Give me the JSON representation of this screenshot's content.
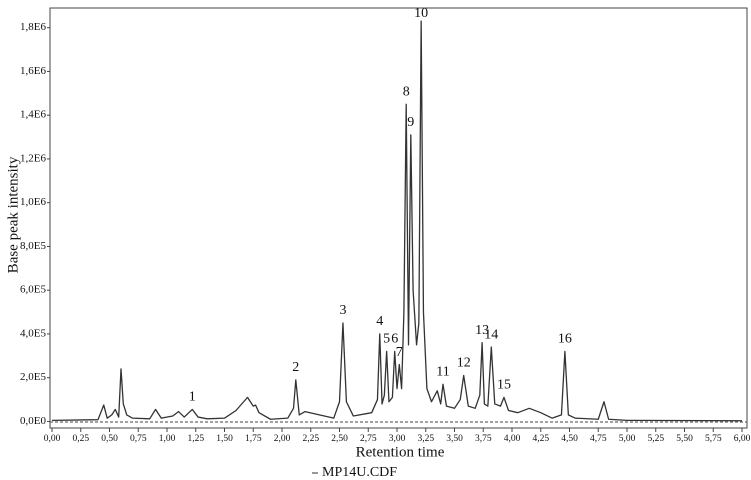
{
  "chart_data": {
    "type": "line",
    "x_label": "Retention time",
    "y_label": "Base peak intensity",
    "xlim": [
      0,
      6
    ],
    "ylim": [
      -30000,
      1890000
    ],
    "xticks": [
      {
        "value": 0,
        "label": "0,00"
      },
      {
        "value": 0.25,
        "label": "0,25"
      },
      {
        "value": 0.5,
        "label": "0,50"
      },
      {
        "value": 0.75,
        "label": "0,75"
      },
      {
        "value": 1,
        "label": "1,00"
      },
      {
        "value": 1.25,
        "label": "1,25"
      },
      {
        "value": 1.5,
        "label": "1,50"
      },
      {
        "value": 1.75,
        "label": "1,75"
      },
      {
        "value": 2,
        "label": "2,00"
      },
      {
        "value": 2.25,
        "label": "2,25"
      },
      {
        "value": 2.5,
        "label": "2,50"
      },
      {
        "value": 2.75,
        "label": "2,75"
      },
      {
        "value": 3,
        "label": "3,00"
      },
      {
        "value": 3.25,
        "label": "3,25"
      },
      {
        "value": 3.5,
        "label": "3,50"
      },
      {
        "value": 3.75,
        "label": "3,75"
      },
      {
        "value": 4,
        "label": "4,00"
      },
      {
        "value": 4.25,
        "label": "4,25"
      },
      {
        "value": 4.5,
        "label": "4,50"
      },
      {
        "value": 4.75,
        "label": "4,75"
      },
      {
        "value": 5,
        "label": "5,00"
      },
      {
        "value": 5.25,
        "label": "5,25"
      },
      {
        "value": 5.5,
        "label": "5,50"
      },
      {
        "value": 5.75,
        "label": "5,75"
      },
      {
        "value": 6,
        "label": "6,00"
      }
    ],
    "yticks": [
      {
        "value": 0,
        "label": "0,0E0"
      },
      {
        "value": 200000,
        "label": "2,0E5"
      },
      {
        "value": 400000,
        "label": "4,0E5"
      },
      {
        "value": 600000,
        "label": "6,0E5"
      },
      {
        "value": 800000,
        "label": "8,0E5"
      },
      {
        "value": 1000000,
        "label": "1,0E6"
      },
      {
        "value": 1200000,
        "label": "1,2E6"
      },
      {
        "value": 1400000,
        "label": "1,4E6"
      },
      {
        "value": 1600000,
        "label": "1,6E6"
      },
      {
        "value": 1800000,
        "label": "1,8E6"
      }
    ],
    "x": [
      0,
      0.4,
      0.45,
      0.48,
      0.52,
      0.55,
      0.58,
      0.6,
      0.62,
      0.65,
      0.7,
      0.85,
      0.9,
      0.95,
      1.05,
      1.1,
      1.15,
      1.22,
      1.27,
      1.35,
      1.5,
      1.6,
      1.7,
      1.75,
      1.77,
      1.8,
      1.9,
      2.05,
      2.1,
      2.12,
      2.15,
      2.2,
      2.45,
      2.5,
      2.53,
      2.56,
      2.62,
      2.78,
      2.83,
      2.85,
      2.87,
      2.89,
      2.91,
      2.93,
      2.96,
      2.98,
      3.0,
      3.02,
      3.04,
      3.06,
      3.08,
      3.1,
      3.12,
      3.14,
      3.17,
      3.19,
      3.21,
      3.23,
      3.26,
      3.3,
      3.35,
      3.38,
      3.4,
      3.43,
      3.5,
      3.55,
      3.58,
      3.62,
      3.68,
      3.72,
      3.74,
      3.76,
      3.79,
      3.82,
      3.85,
      3.9,
      3.93,
      3.97,
      4.05,
      4.15,
      4.25,
      4.35,
      4.43,
      4.46,
      4.49,
      4.55,
      4.75,
      4.8,
      4.84,
      5.0,
      6.0
    ],
    "series": [
      {
        "name": "MP14U.CDF",
        "color": "#333333",
        "values": [
          5000,
          8000,
          75000,
          15000,
          30000,
          55000,
          20000,
          240000,
          80000,
          30000,
          15000,
          12000,
          55000,
          15000,
          25000,
          45000,
          20000,
          55000,
          20000,
          12000,
          15000,
          50000,
          110000,
          70000,
          75000,
          40000,
          10000,
          15000,
          60000,
          190000,
          30000,
          45000,
          15000,
          90000,
          450000,
          90000,
          25000,
          40000,
          100000,
          400000,
          80000,
          120000,
          320000,
          90000,
          110000,
          320000,
          150000,
          260000,
          150000,
          500000,
          1450000,
          350000,
          1310000,
          600000,
          350000,
          450000,
          1830000,
          500000,
          150000,
          90000,
          140000,
          80000,
          170000,
          70000,
          60000,
          100000,
          210000,
          70000,
          60000,
          120000,
          360000,
          80000,
          70000,
          340000,
          80000,
          70000,
          110000,
          50000,
          40000,
          60000,
          40000,
          15000,
          30000,
          320000,
          30000,
          15000,
          10000,
          90000,
          10000,
          5000,
          3000
        ]
      }
    ],
    "annotations": [
      {
        "label": "1",
        "x": 1.22
      },
      {
        "label": "2",
        "x": 2.12
      },
      {
        "label": "3",
        "x": 2.53
      },
      {
        "label": "4",
        "x": 2.85
      },
      {
        "label": "5",
        "x": 2.91
      },
      {
        "label": "6",
        "x": 2.98
      },
      {
        "label": "7",
        "x": 3.02
      },
      {
        "label": "8",
        "x": 3.08
      },
      {
        "label": "9",
        "x": 3.12
      },
      {
        "label": "10",
        "x": 3.21
      },
      {
        "label": "11",
        "x": 3.4
      },
      {
        "label": "12",
        "x": 3.58
      },
      {
        "label": "13",
        "x": 3.74
      },
      {
        "label": "14",
        "x": 3.82
      },
      {
        "label": "15",
        "x": 3.93
      },
      {
        "label": "16",
        "x": 4.46
      }
    ]
  }
}
